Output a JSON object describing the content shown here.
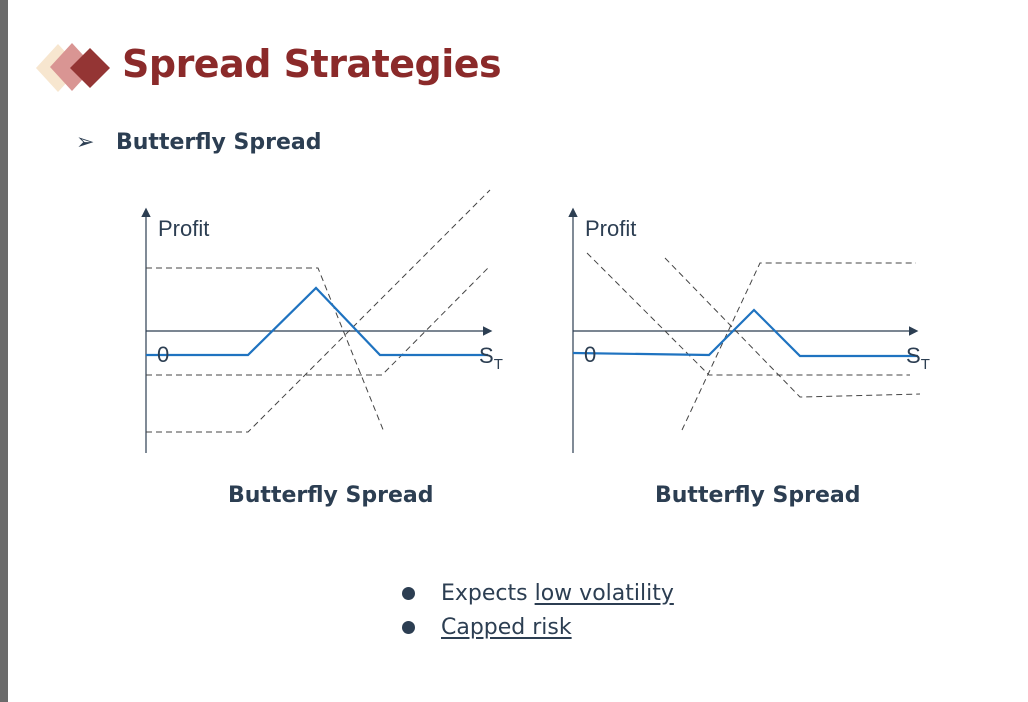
{
  "slide": {
    "title": "Spread Strategies",
    "subheading": "Butterfly Spread",
    "bullet_marker": "➢"
  },
  "diagrams": [
    {
      "y_label": "Profit",
      "origin_label": "0",
      "x_label": "S",
      "x_label_sub": "T",
      "caption": "Butterfly Spread"
    },
    {
      "y_label": "Profit",
      "origin_label": "0",
      "x_label": "S",
      "x_label_sub": "T",
      "caption": "Butterfly Spread"
    }
  ],
  "bullets": [
    {
      "plain": "Expects ",
      "link": "low volatility"
    },
    {
      "plain": "",
      "link": "Capped risk"
    }
  ],
  "colors": {
    "title": "#8b2a2a",
    "text": "#2c3e52",
    "payoff": "#1f73c0",
    "dashed": "#444444"
  }
}
